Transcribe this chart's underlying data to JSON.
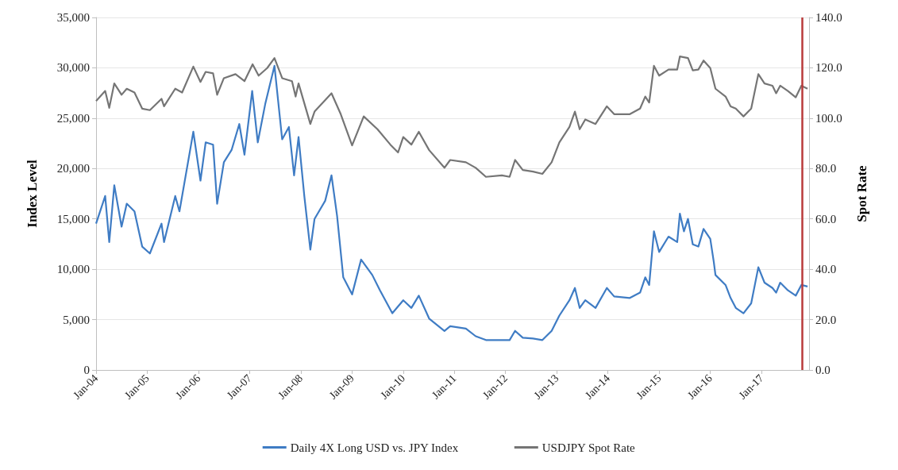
{
  "chart_data": {
    "type": "line",
    "ylabel": "Index Level",
    "y2label": "Spot Rate",
    "xlim": [
      "2004-01-01",
      "2017-12-06"
    ],
    "xticks": [
      {
        "value": "2004-01-01",
        "label": "Jan-04"
      },
      {
        "value": "2005-01-01",
        "label": "Jan-05"
      },
      {
        "value": "2006-01-01",
        "label": "Jan-06"
      },
      {
        "value": "2007-01-01",
        "label": "Jan-07"
      },
      {
        "value": "2008-01-01",
        "label": "Jan-08"
      },
      {
        "value": "2009-01-01",
        "label": "Jan-09"
      },
      {
        "value": "2010-01-01",
        "label": "Jan-10"
      },
      {
        "value": "2011-01-01",
        "label": "Jan-11"
      },
      {
        "value": "2012-01-01",
        "label": "Jan-12"
      },
      {
        "value": "2013-01-01",
        "label": "Jan-13"
      },
      {
        "value": "2014-01-01",
        "label": "Jan-14"
      },
      {
        "value": "2015-01-01",
        "label": "Jan-15"
      },
      {
        "value": "2016-01-01",
        "label": "Jan-16"
      },
      {
        "value": "2017-01-01",
        "label": "Jan-17"
      }
    ],
    "ylim": [
      0,
      35000
    ],
    "yticks": [
      0,
      {
        "value": 5000,
        "label": "5,000"
      },
      {
        "value": 10000,
        "label": "10,000"
      },
      {
        "value": 15000,
        "label": "15,000"
      },
      {
        "value": 20000,
        "label": "20,000"
      },
      {
        "value": 25000,
        "label": "25,000"
      },
      {
        "value": 30000,
        "label": "30,000"
      },
      {
        "value": 35000,
        "label": "35,000"
      }
    ],
    "y2lim": [
      0,
      140
    ],
    "y2ticks": [
      {
        "value": 0,
        "label": "0.0"
      },
      {
        "value": 20,
        "label": "20.0"
      },
      {
        "value": 40,
        "label": "40.0"
      },
      {
        "value": 60,
        "label": "60.0"
      },
      {
        "value": 80,
        "label": "80.0"
      },
      {
        "value": 100,
        "label": "100.0"
      },
      {
        "value": 120,
        "label": "120.0"
      },
      {
        "value": 140,
        "label": "140.0"
      }
    ],
    "grid": "y",
    "legend": "bottom",
    "marker": "none",
    "line_style": "solid",
    "ref_lines": [
      {
        "axis": "x",
        "value": "2017-10-20",
        "color": "#b83a3a"
      }
    ],
    "series": [
      {
        "name": "Daily 4X Long USD vs. JPY Index",
        "color": "#3f7cc4",
        "x": [
          "2004-01-01",
          "2004-03-06",
          "2004-04-04",
          "2004-05-10",
          "2004-07-01",
          "2004-08-07",
          "2004-10-01",
          "2004-11-25",
          "2005-01-19",
          "2005-04-12",
          "2005-04-30",
          "2005-07-19",
          "2005-08-18",
          "2005-11-25",
          "2006-01-15",
          "2006-02-21",
          "2006-04-15",
          "2006-05-14",
          "2006-07-01",
          "2006-08-25",
          "2006-10-19",
          "2006-11-25",
          "2007-01-19",
          "2007-02-28",
          "2007-04-22",
          "2007-06-27",
          "2007-08-21",
          "2007-10-08",
          "2007-11-14",
          "2007-12-16",
          "2008-01-26",
          "2008-03-09",
          "2008-04-08",
          "2008-06-23",
          "2008-08-07",
          "2008-09-16",
          "2008-10-30",
          "2009-01-01",
          "2009-03-06",
          "2009-05-25",
          "2009-07-19",
          "2009-10-15",
          "2010-01-01",
          "2010-02-28",
          "2010-04-22",
          "2010-07-05",
          "2010-10-22",
          "2010-12-02",
          "2011-03-24",
          "2011-06-02",
          "2011-08-14",
          "2011-12-06",
          "2012-01-30",
          "2012-03-09",
          "2012-05-03",
          "2012-07-15",
          "2012-09-20",
          "2012-11-25",
          "2013-01-19",
          "2013-04-01",
          "2013-05-10",
          "2013-06-13",
          "2013-07-23",
          "2013-10-04",
          "2013-12-24",
          "2014-02-14",
          "2014-06-06",
          "2014-08-18",
          "2014-09-24",
          "2014-10-22",
          "2014-11-25",
          "2015-01-01",
          "2015-03-09",
          "2015-05-10",
          "2015-05-29",
          "2015-06-27",
          "2015-07-26",
          "2015-08-29",
          "2015-10-08",
          "2015-11-14",
          "2016-01-01",
          "2016-01-26",
          "2016-02-07",
          "2016-04-19",
          "2016-05-25",
          "2016-07-01",
          "2016-08-25",
          "2016-10-19",
          "2016-12-09",
          "2017-01-22",
          "2017-03-20",
          "2017-04-15",
          "2017-05-14",
          "2017-07-08",
          "2017-09-02",
          "2017-10-12",
          "2017-11-25"
        ],
        "values": [
          14530,
          17270,
          12700,
          18340,
          14230,
          16510,
          15750,
          12250,
          11570,
          14530,
          12700,
          17270,
          15750,
          23660,
          18800,
          22600,
          22370,
          16510,
          20620,
          21840,
          24420,
          21380,
          27700,
          22600,
          26400,
          30200,
          22900,
          24120,
          19330,
          23130,
          17270,
          11950,
          15000,
          16800,
          19330,
          15290,
          9200,
          7500,
          10960,
          9430,
          7910,
          5630,
          6920,
          6160,
          7380,
          5100,
          3880,
          4340,
          4110,
          3350,
          2970,
          2970,
          2970,
          3880,
          3200,
          3120,
          2970,
          3880,
          5400,
          6920,
          8140,
          6160,
          6920,
          6160,
          8140,
          7300,
          7150,
          7680,
          9200,
          8440,
          13770,
          11720,
          13240,
          12700,
          15520,
          13770,
          15000,
          12480,
          12250,
          14000,
          13010,
          10730,
          9430,
          8440,
          7150,
          6160,
          5630,
          6620,
          10200,
          8670,
          8140,
          7680,
          8670,
          7910,
          7380,
          8440,
          8290
        ]
      },
      {
        "name": "USDJPY Spot Rate",
        "color": "#757575",
        "axis": "y2",
        "x": [
          "2004-01-01",
          "2004-03-06",
          "2004-04-04",
          "2004-05-10",
          "2004-07-01",
          "2004-08-07",
          "2004-10-01",
          "2004-11-25",
          "2005-01-19",
          "2005-04-12",
          "2005-04-30",
          "2005-07-19",
          "2005-09-06",
          "2005-11-25",
          "2006-01-15",
          "2006-02-21",
          "2006-04-15",
          "2006-05-14",
          "2006-07-01",
          "2006-09-22",
          "2006-11-25",
          "2007-01-22",
          "2007-03-06",
          "2007-05-06",
          "2007-06-27",
          "2007-08-21",
          "2007-10-30",
          "2007-11-25",
          "2007-12-16",
          "2008-03-09",
          "2008-04-08",
          "2008-08-07",
          "2008-10-12",
          "2009-01-01",
          "2009-03-25",
          "2009-07-01",
          "2009-10-01",
          "2009-11-25",
          "2010-01-01",
          "2010-02-28",
          "2010-04-22",
          "2010-07-05",
          "2010-10-22",
          "2010-12-02",
          "2011-03-24",
          "2011-06-02",
          "2011-08-14",
          "2011-12-06",
          "2012-01-30",
          "2012-03-09",
          "2012-05-03",
          "2012-07-15",
          "2012-09-20",
          "2012-11-25",
          "2013-01-19",
          "2013-04-01",
          "2013-05-10",
          "2013-06-13",
          "2013-07-23",
          "2013-10-04",
          "2013-12-24",
          "2014-02-14",
          "2014-06-06",
          "2014-08-18",
          "2014-09-24",
          "2014-10-22",
          "2014-11-25",
          "2015-01-01",
          "2015-03-09",
          "2015-05-10",
          "2015-05-29",
          "2015-07-26",
          "2015-08-29",
          "2015-10-08",
          "2015-11-14",
          "2016-01-01",
          "2016-02-07",
          "2016-04-19",
          "2016-05-25",
          "2016-07-01",
          "2016-08-25",
          "2016-10-19",
          "2016-12-09",
          "2017-01-22",
          "2017-03-20",
          "2017-04-15",
          "2017-05-14",
          "2017-07-08",
          "2017-09-02",
          "2017-10-12",
          "2017-11-25"
        ],
        "values": [
          106.8,
          110.8,
          104.1,
          113.8,
          109.3,
          111.7,
          110.2,
          103.8,
          103.2,
          107.7,
          104.7,
          111.7,
          110.2,
          120.5,
          114.4,
          118.4,
          117.8,
          109.3,
          115.9,
          117.5,
          114.7,
          121.4,
          116.9,
          119.9,
          123.9,
          115.9,
          114.7,
          108.6,
          113.8,
          97.7,
          102.6,
          109.9,
          101.6,
          89.2,
          100.7,
          95.6,
          89.5,
          86.4,
          92.5,
          89.5,
          94.6,
          87.3,
          80.3,
          83.4,
          82.5,
          80.3,
          76.7,
          77.3,
          76.7,
          83.4,
          79.4,
          78.8,
          77.9,
          82.5,
          90.4,
          96.5,
          102.6,
          95.6,
          99.5,
          97.7,
          104.7,
          101.6,
          101.6,
          103.8,
          108.6,
          106.2,
          120.8,
          116.9,
          119.3,
          119.3,
          124.5,
          123.9,
          119.0,
          119.3,
          122.9,
          119.9,
          111.7,
          108.6,
          104.7,
          103.8,
          100.7,
          103.8,
          117.5,
          113.8,
          112.9,
          109.9,
          112.9,
          110.8,
          108.3,
          112.9,
          111.7
        ]
      }
    ]
  }
}
